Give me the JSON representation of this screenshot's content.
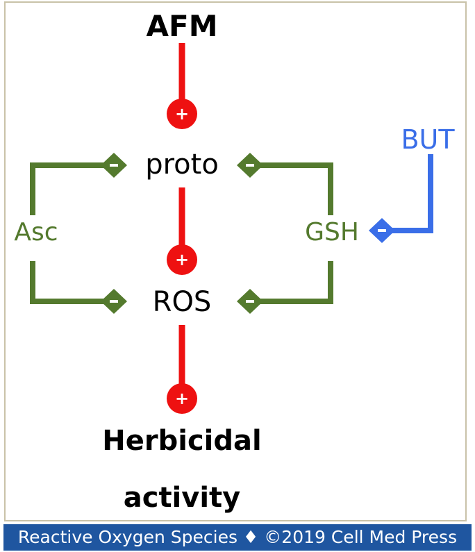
{
  "diagram": {
    "nodes": {
      "afm": "AFM",
      "proto": "proto",
      "ros": "ROS",
      "herbicidal_line1": "Herbicidal",
      "herbicidal_line2": "activity",
      "asc": "Asc",
      "gsh": "GSH",
      "but": "BUT"
    },
    "signs": {
      "plus": "+",
      "minus": "-"
    },
    "colors": {
      "activation": "#ee1111",
      "inhibition_green": "#547a2e",
      "inhibition_blue": "#3a6ee8",
      "text": "#000000",
      "frame": "#c9c2a8",
      "footer_bg": "#1f56a0"
    }
  },
  "footer": {
    "text": "Reactive Oxygen Species ♦ ©2019 Cell Med Press"
  }
}
